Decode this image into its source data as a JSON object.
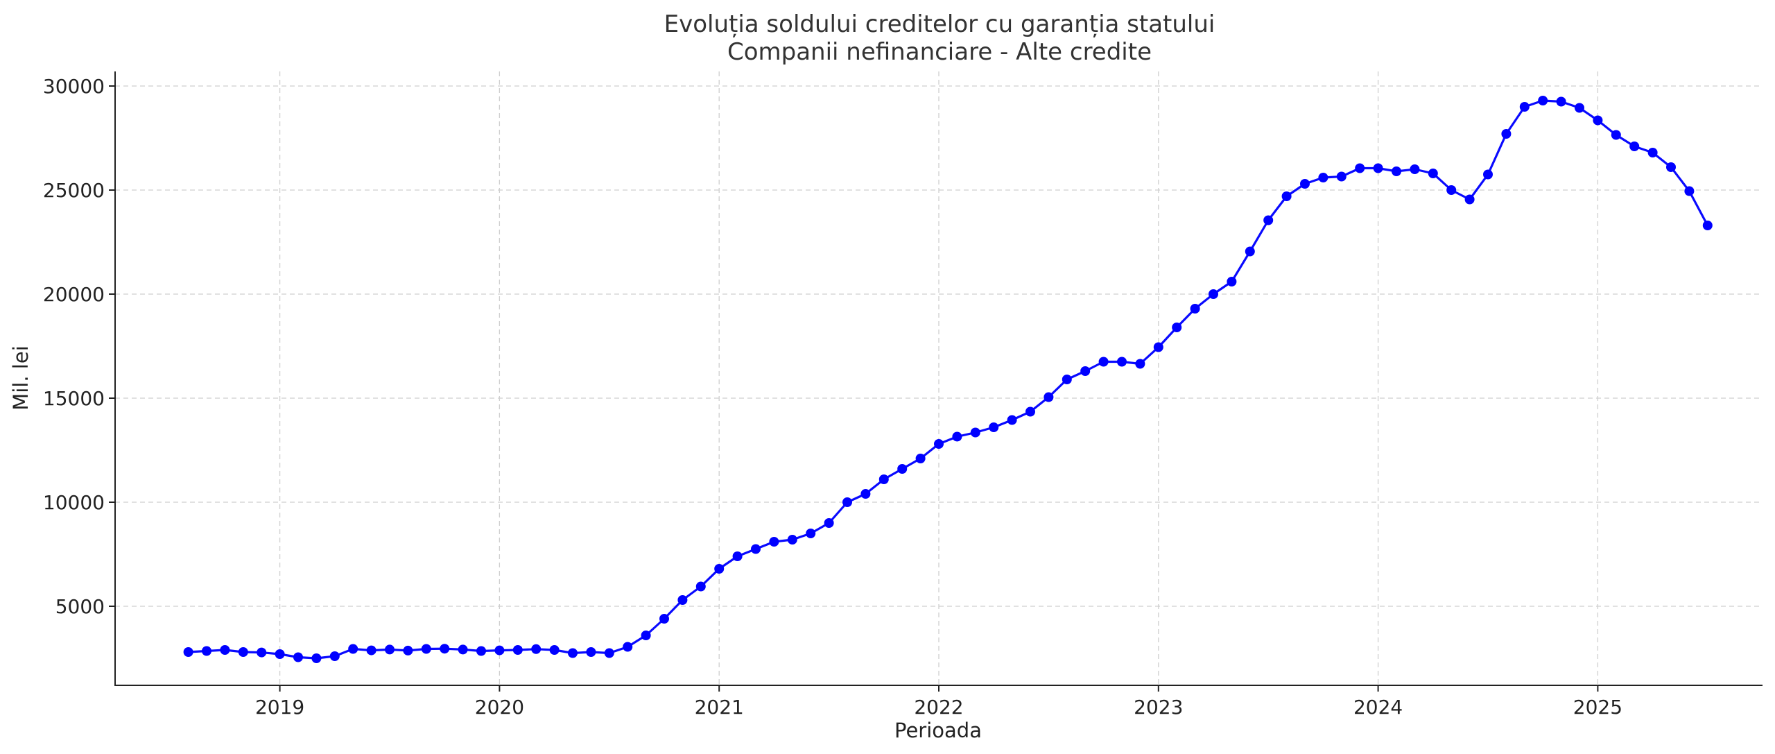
{
  "chart_data": {
    "type": "line",
    "title": "Evoluția soldului creditelor cu garanția statului",
    "subtitle": "Companii nefinanciare - Alte credite",
    "xlabel": "Perioada",
    "ylabel": "Mil. lei",
    "x_ticks": [
      "2019",
      "2020",
      "2021",
      "2022",
      "2023",
      "2024",
      "2025"
    ],
    "y_ticks": [
      "5000",
      "10000",
      "15000",
      "20000",
      "25000",
      "30000"
    ],
    "xlim": [
      "2018-04",
      "2025-10"
    ],
    "ylim": [
      1200,
      30700
    ],
    "grid": true,
    "legend": "none",
    "colors": {
      "series": "#0a0aff",
      "marker": "#0000ff"
    },
    "series": [
      {
        "x": [
          "2018-08",
          "2018-09",
          "2018-10",
          "2018-11",
          "2018-12",
          "2019-01",
          "2019-02",
          "2019-03",
          "2019-04",
          "2019-05",
          "2019-06",
          "2019-07",
          "2019-08",
          "2019-09",
          "2019-10",
          "2019-11",
          "2019-12",
          "2020-01",
          "2020-02",
          "2020-03",
          "2020-04",
          "2020-05",
          "2020-06",
          "2020-07",
          "2020-08",
          "2020-09",
          "2020-10",
          "2020-11",
          "2020-12",
          "2021-01",
          "2021-02",
          "2021-03",
          "2021-04",
          "2021-05",
          "2021-06",
          "2021-07",
          "2021-08",
          "2021-09",
          "2021-10",
          "2021-11",
          "2021-12",
          "2022-01",
          "2022-02",
          "2022-03",
          "2022-04",
          "2022-05",
          "2022-06",
          "2022-07",
          "2022-08",
          "2022-09",
          "2022-10",
          "2022-11",
          "2022-12",
          "2023-01",
          "2023-02",
          "2023-03",
          "2023-04",
          "2023-05",
          "2023-06",
          "2023-07",
          "2023-08",
          "2023-09",
          "2023-10",
          "2023-11",
          "2023-12",
          "2024-01",
          "2024-02",
          "2024-03",
          "2024-04",
          "2024-05",
          "2024-06",
          "2024-07",
          "2024-08",
          "2024-09",
          "2024-10",
          "2024-11",
          "2024-12",
          "2025-01",
          "2025-02",
          "2025-03",
          "2025-04",
          "2025-05",
          "2025-06",
          "2025-07"
        ],
        "values": [
          2800,
          2850,
          2900,
          2800,
          2780,
          2700,
          2550,
          2500,
          2600,
          2950,
          2880,
          2920,
          2870,
          2950,
          2960,
          2920,
          2850,
          2880,
          2900,
          2940,
          2900,
          2750,
          2800,
          2750,
          3050,
          3600,
          4400,
          5300,
          5950,
          6800,
          7400,
          7750,
          8100,
          8200,
          8500,
          9000,
          10000,
          10400,
          11100,
          11600,
          12100,
          12800,
          13150,
          13350,
          13600,
          13950,
          14350,
          15050,
          15900,
          16300,
          16750,
          16750,
          16650,
          17450,
          18400,
          19300,
          20000,
          20600,
          22050,
          23550,
          24700,
          25300,
          25600,
          25650,
          26050,
          26050,
          25900,
          26000,
          25800,
          25000,
          24550,
          25750,
          27700,
          29000,
          29300,
          29250,
          28950,
          28350,
          27650,
          27100,
          26800,
          26100,
          24950,
          23300
        ]
      }
    ]
  }
}
